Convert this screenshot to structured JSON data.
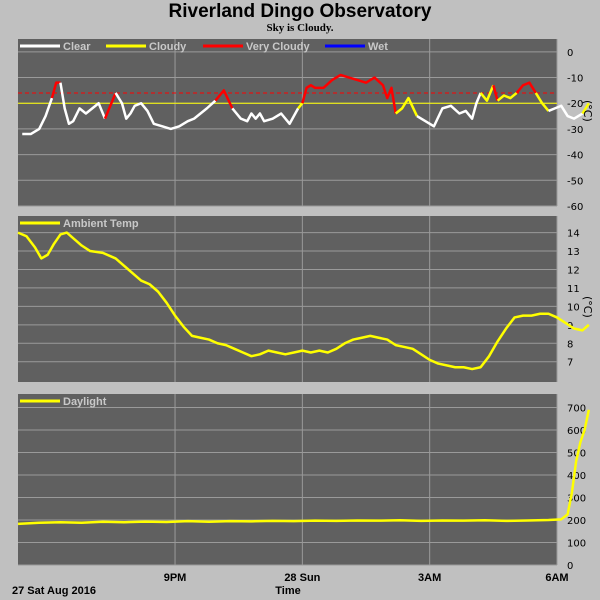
{
  "title": "Riverland Dingo Observatory",
  "subtitle": "Sky is Cloudy.",
  "colors": {
    "background": "#c0c0c0",
    "panel": "#606060",
    "grid": "#9a9a9a",
    "clear": "#ffffff",
    "cloudy": "#ffff00",
    "very_cloudy": "#ff0000",
    "wet": "#0000ff"
  },
  "time_axis": {
    "range_hours": [
      17.3,
      30.0
    ],
    "ticks": [
      {
        "hour": 21,
        "label": "9PM"
      },
      {
        "hour": 24,
        "label": "28 Sun"
      },
      {
        "hour": 27,
        "label": "3AM"
      },
      {
        "hour": 30,
        "label": "6AM"
      }
    ],
    "date_label": "27 Sat Aug 2016",
    "xlabel": "Time"
  },
  "chart_data": [
    {
      "type": "line",
      "name": "sky",
      "ylabel": "(°C)",
      "ylim": [
        -60,
        5
      ],
      "yticks": [
        0,
        -10,
        -20,
        -30,
        -40,
        -50,
        -60
      ],
      "grid": true,
      "thresholds": [
        {
          "value": -20,
          "color": "#ffff00",
          "style": "solid"
        },
        {
          "value": -16,
          "color": "#ff0000",
          "style": "dashed"
        }
      ],
      "legend": [
        {
          "label": "Clear",
          "color": "#ffffff"
        },
        {
          "label": "Cloudy",
          "color": "#ffff00"
        },
        {
          "label": "Very Cloudy",
          "color": "#ff0000"
        },
        {
          "label": "Wet",
          "color": "#0000ff"
        }
      ],
      "x": [
        17.4,
        17.6,
        17.8,
        17.95,
        18.1,
        18.2,
        18.3,
        18.4,
        18.5,
        18.6,
        18.75,
        18.9,
        19.05,
        19.2,
        19.35,
        19.5,
        19.6,
        19.75,
        19.85,
        19.95,
        20.05,
        20.2,
        20.35,
        20.5,
        20.7,
        20.9,
        21.1,
        21.3,
        21.45,
        21.6,
        21.75,
        21.95,
        22.15,
        22.35,
        22.55,
        22.7,
        22.8,
        22.9,
        23.0,
        23.1,
        23.3,
        23.5,
        23.7,
        23.9,
        24.0,
        24.1,
        24.2,
        24.3,
        24.5,
        24.7,
        24.9,
        25.1,
        25.3,
        25.5,
        25.7,
        25.9,
        26.0,
        26.1,
        26.2,
        26.35,
        26.5,
        26.7,
        26.9,
        27.1,
        27.3,
        27.5,
        27.7,
        27.85,
        28.0,
        28.1,
        28.2,
        28.35,
        28.5,
        28.6,
        28.75,
        28.9,
        29.05,
        29.2,
        29.35,
        29.5,
        29.65,
        29.8,
        29.95,
        30.1,
        30.25,
        30.4,
        30.6,
        30.75
      ],
      "y": [
        -32,
        -32,
        -30,
        -25,
        -18,
        -12,
        -12,
        -22,
        -28,
        -27,
        -22,
        -24,
        -22,
        -20,
        -26,
        -20,
        -16,
        -20,
        -26,
        -24,
        -21,
        -20,
        -23,
        -28,
        -29,
        -30,
        -29,
        -27,
        -26,
        -24,
        -22,
        -19,
        -15,
        -22,
        -26,
        -27,
        -24,
        -26,
        -24,
        -27,
        -26,
        -24,
        -28,
        -22,
        -20,
        -14,
        -13,
        -14,
        -14,
        -11,
        -9,
        -10,
        -11,
        -12,
        -10,
        -13,
        -18,
        -14,
        -24,
        -22,
        -18,
        -25,
        -27,
        -29,
        -22,
        -21,
        -24,
        -23,
        -26,
        -20,
        -16,
        -19,
        -13,
        -19,
        -17,
        -18,
        -16,
        -13,
        -12,
        -16,
        -20,
        -23,
        -22,
        -21,
        -25,
        -26,
        -24,
        -20
      ],
      "segments": [
        {
          "from": 0,
          "to": 4,
          "category": "Clear"
        },
        {
          "from": 4,
          "to": 6,
          "category": "Very Cloudy"
        },
        {
          "from": 6,
          "to": 14,
          "category": "Clear"
        },
        {
          "from": 14,
          "to": 16,
          "category": "Very Cloudy"
        },
        {
          "from": 16,
          "to": 31,
          "category": "Clear"
        },
        {
          "from": 31,
          "to": 33,
          "category": "Very Cloudy"
        },
        {
          "from": 33,
          "to": 43,
          "category": "Clear"
        },
        {
          "from": 43,
          "to": 44,
          "category": "Cloudy"
        },
        {
          "from": 44,
          "to": 58,
          "category": "Very Cloudy"
        },
        {
          "from": 58,
          "to": 61,
          "category": "Cloudy"
        },
        {
          "from": 61,
          "to": 70,
          "category": "Clear"
        },
        {
          "from": 70,
          "to": 72,
          "category": "Cloudy"
        },
        {
          "from": 72,
          "to": 73,
          "category": "Very Cloudy"
        },
        {
          "from": 73,
          "to": 76,
          "category": "Cloudy"
        },
        {
          "from": 76,
          "to": 79,
          "category": "Very Cloudy"
        },
        {
          "from": 79,
          "to": 81,
          "category": "Cloudy"
        },
        {
          "from": 81,
          "to": 86,
          "category": "Clear"
        },
        {
          "from": 86,
          "to": 87,
          "category": "Cloudy"
        }
      ]
    },
    {
      "type": "line",
      "name": "ambient",
      "ylabel": "(°C)",
      "ylim": [
        5.9,
        14.9
      ],
      "yticks": [
        14,
        13,
        12,
        11,
        10,
        9,
        8,
        7
      ],
      "grid": true,
      "legend": [
        {
          "label": "Ambient Temp",
          "color": "#ffff00"
        }
      ],
      "color": "#ffff00",
      "x": [
        17.3,
        17.5,
        17.7,
        17.85,
        18.0,
        18.15,
        18.3,
        18.45,
        18.6,
        18.8,
        19.0,
        19.3,
        19.6,
        19.8,
        20.0,
        20.2,
        20.4,
        20.6,
        20.8,
        21.0,
        21.2,
        21.4,
        21.6,
        21.8,
        22.0,
        22.2,
        22.4,
        22.6,
        22.8,
        23.0,
        23.2,
        23.4,
        23.6,
        23.8,
        24.0,
        24.2,
        24.4,
        24.6,
        24.8,
        25.0,
        25.2,
        25.4,
        25.6,
        25.8,
        26.0,
        26.2,
        26.4,
        26.6,
        26.8,
        27.0,
        27.2,
        27.4,
        27.6,
        27.8,
        28.0,
        28.2,
        28.4,
        28.6,
        28.8,
        29.0,
        29.2,
        29.4,
        29.6,
        29.8,
        30.0,
        30.2,
        30.4,
        30.6,
        30.75
      ],
      "y": [
        14.0,
        13.8,
        13.2,
        12.6,
        12.8,
        13.4,
        13.9,
        14.0,
        13.7,
        13.3,
        13.0,
        12.9,
        12.6,
        12.2,
        11.8,
        11.4,
        11.2,
        10.8,
        10.2,
        9.5,
        8.9,
        8.4,
        8.3,
        8.2,
        8.0,
        7.9,
        7.7,
        7.5,
        7.3,
        7.4,
        7.6,
        7.5,
        7.4,
        7.5,
        7.6,
        7.5,
        7.6,
        7.5,
        7.7,
        8.0,
        8.2,
        8.3,
        8.4,
        8.3,
        8.2,
        7.9,
        7.8,
        7.7,
        7.4,
        7.1,
        6.9,
        6.8,
        6.7,
        6.7,
        6.6,
        6.7,
        7.3,
        8.1,
        8.8,
        9.4,
        9.5,
        9.5,
        9.6,
        9.6,
        9.4,
        9.1,
        8.8,
        8.7,
        9.0
      ]
    },
    {
      "type": "line",
      "name": "daylight",
      "ylim": [
        0,
        760
      ],
      "yticks": [
        700,
        600,
        500,
        400,
        300,
        200,
        100,
        0
      ],
      "grid": true,
      "legend": [
        {
          "label": "Daylight",
          "color": "#ffff00"
        }
      ],
      "color": "#ffff00",
      "x": [
        17.3,
        17.8,
        18.3,
        18.8,
        19.3,
        19.8,
        20.3,
        20.8,
        21.3,
        21.8,
        22.3,
        22.8,
        23.3,
        23.8,
        24.3,
        24.8,
        25.3,
        25.8,
        26.3,
        26.8,
        27.3,
        27.8,
        28.3,
        28.8,
        29.3,
        29.8,
        30.1,
        30.25,
        30.35,
        30.45,
        30.55,
        30.65,
        30.75
      ],
      "y": [
        183,
        188,
        190,
        188,
        192,
        190,
        193,
        191,
        195,
        192,
        195,
        194,
        196,
        195,
        197,
        196,
        198,
        197,
        199,
        196,
        198,
        197,
        199,
        196,
        198,
        200,
        203,
        225,
        320,
        460,
        545,
        600,
        690
      ]
    }
  ]
}
